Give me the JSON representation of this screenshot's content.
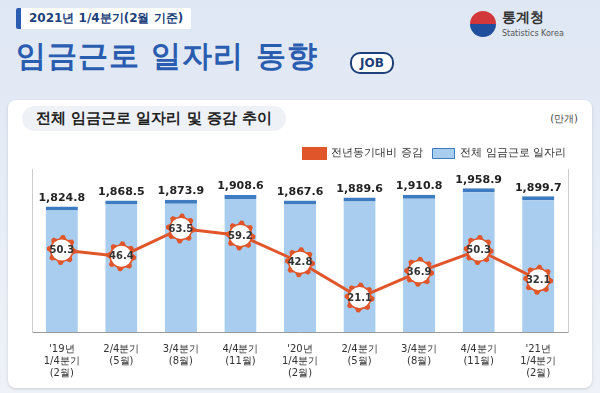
{
  "header": {
    "period": "2021년 1/4분기(2월 기준)",
    "title": "임금근로 일자리 동향",
    "logo": "통계청",
    "logo_en": "Statistics Korea",
    "badge": "JOB"
  },
  "chart_data": {
    "type": "bar",
    "title": "전체 임금근로 일자리 및 증감 추이",
    "ylabel": "(만개)",
    "categories": [
      "'19년 1/4분기\n(2월)",
      "2/4분기\n(5월)",
      "3/4분기\n(8월)",
      "4/4분기\n(11월)",
      "'20년 1/4분기\n(2월)",
      "2/4분기\n(5월)",
      "3/4분기\n(8월)",
      "4/4분기\n(11월)",
      "'21년 1/4분기\n(2월)"
    ],
    "series": [
      {
        "name": "전체 임금근로 일자리",
        "type": "bar",
        "color": "#a9cdee",
        "values": [
          1824.8,
          1868.5,
          1873.9,
          1908.6,
          1867.6,
          1889.6,
          1910.8,
          1958.9,
          1899.7
        ],
        "value_labels": [
          "1,824.8",
          "1,868.5",
          "1,873.9",
          "1,908.6",
          "1,867.6",
          "1,889.6",
          "1,910.8",
          "1,958.9",
          "1,899.7"
        ]
      },
      {
        "name": "전년동기대비 증감",
        "type": "line",
        "color": "#e0552a",
        "axis": "y2",
        "marker": "gear",
        "values": [
          50.3,
          46.4,
          63.5,
          59.2,
          42.8,
          21.1,
          36.9,
          50.3,
          32.1
        ]
      }
    ],
    "ylim": [
      900,
      2100
    ],
    "y2lim": [
      0,
      100
    ],
    "grid": false,
    "legend": "top",
    "data_labels": true,
    "tick_labels": "x"
  }
}
